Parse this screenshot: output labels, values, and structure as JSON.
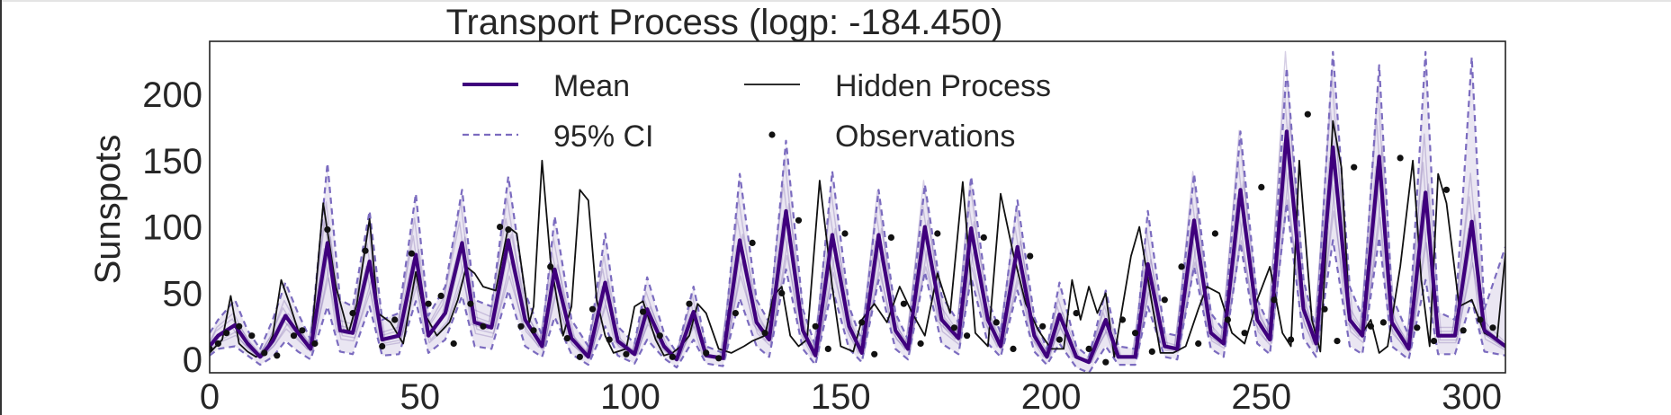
{
  "colors": {
    "mean": "#3f007d",
    "ci": "#7b6bbf",
    "samples": "#6a51a3",
    "hidden": "#111111",
    "observations": "#111111",
    "axes": "#222222"
  },
  "chart_data": {
    "type": "line",
    "title": "Transport Process (logp: -184.450)",
    "xlabel": "",
    "ylabel": "Sunspots",
    "xlim": [
      0,
      308
    ],
    "ylim": [
      -10,
      240
    ],
    "xticks": [
      0,
      50,
      100,
      150,
      200,
      250,
      300
    ],
    "yticks": [
      0,
      50,
      100,
      150,
      200
    ],
    "grid": false,
    "legend_placement": "top-center, two columns",
    "legend": [
      {
        "label": "Mean",
        "style": "thick-line"
      },
      {
        "label": "95% CI",
        "style": "dashed"
      },
      {
        "label": "Hidden Process",
        "style": "thin-line"
      },
      {
        "label": "Observations",
        "style": "dot"
      }
    ],
    "series": [
      {
        "name": "Mean",
        "x": [
          0,
          2,
          6,
          9,
          12,
          15,
          18,
          21,
          24,
          28,
          31,
          34,
          38,
          41,
          45,
          49,
          52,
          56,
          60,
          63,
          67,
          71,
          75,
          79,
          82,
          86,
          90,
          94,
          97,
          101,
          104,
          108,
          111,
          115,
          118,
          122,
          126,
          130,
          133,
          137,
          141,
          144,
          148,
          152,
          155,
          159,
          163,
          166,
          170,
          174,
          178,
          181,
          185,
          188,
          192,
          196,
          199,
          202,
          206,
          209,
          213,
          216,
          220,
          223,
          227,
          230,
          234,
          238,
          241,
          245,
          249,
          252,
          256,
          260,
          263,
          267,
          271,
          274,
          278,
          281,
          285,
          289,
          292,
          296,
          300,
          303,
          308
        ],
        "y": [
          10,
          18,
          26,
          12,
          2,
          14,
          33,
          20,
          8,
          88,
          22,
          20,
          74,
          15,
          18,
          79,
          18,
          35,
          88,
          28,
          24,
          90,
          30,
          10,
          68,
          16,
          2,
          58,
          14,
          4,
          38,
          10,
          0,
          36,
          3,
          1,
          90,
          28,
          15,
          112,
          22,
          3,
          94,
          25,
          5,
          94,
          22,
          8,
          100,
          30,
          16,
          99,
          30,
          10,
          85,
          18,
          2,
          34,
          2,
          -2,
          30,
          2,
          2,
          72,
          10,
          8,
          105,
          20,
          12,
          128,
          30,
          15,
          172,
          38,
          12,
          160,
          30,
          18,
          153,
          28,
          8,
          126,
          18,
          18,
          104,
          22,
          10
        ]
      },
      {
        "name": "95% CI",
        "x": [
          0,
          2,
          6,
          9,
          12,
          15,
          18,
          21,
          24,
          28,
          31,
          34,
          38,
          41,
          45,
          49,
          52,
          56,
          60,
          63,
          67,
          71,
          75,
          79,
          82,
          86,
          90,
          94,
          97,
          101,
          104,
          108,
          111,
          115,
          118,
          122,
          126,
          130,
          133,
          137,
          141,
          144,
          148,
          152,
          155,
          159,
          163,
          166,
          170,
          174,
          178,
          181,
          185,
          188,
          192,
          196,
          199,
          202,
          206,
          209,
          213,
          216,
          220,
          223,
          227,
          230,
          234,
          238,
          241,
          245,
          249,
          252,
          256,
          260,
          263,
          267,
          271,
          274,
          278,
          281,
          285,
          289,
          292,
          296,
          300,
          303,
          308
        ],
        "y": [
          20,
          30,
          45,
          22,
          8,
          30,
          58,
          35,
          15,
          148,
          45,
          40,
          112,
          30,
          35,
          125,
          33,
          55,
          128,
          45,
          40,
          138,
          50,
          18,
          108,
          30,
          10,
          95,
          25,
          12,
          62,
          20,
          5,
          55,
          10,
          5,
          140,
          45,
          28,
          165,
          38,
          10,
          142,
          40,
          14,
          128,
          35,
          15,
          132,
          48,
          28,
          138,
          45,
          20,
          120,
          32,
          8,
          58,
          10,
          2,
          52,
          10,
          8,
          112,
          20,
          18,
          140,
          35,
          22,
          172,
          45,
          25,
          220,
          60,
          22,
          232,
          55,
          32,
          222,
          48,
          18,
          232,
          36,
          30,
          228,
          38,
          85
        ]
      },
      {
        "name": "Hidden Process",
        "x": [
          0,
          3,
          5,
          7,
          9,
          11,
          13,
          15,
          17,
          19,
          21,
          24,
          27,
          30,
          33,
          35,
          38,
          40,
          43,
          46,
          49,
          51,
          54,
          57,
          59,
          61,
          63,
          65,
          68,
          71,
          73,
          76,
          77,
          79,
          81,
          84,
          86,
          88,
          90,
          92,
          94,
          96,
          99,
          101,
          103,
          106,
          108,
          110,
          112,
          114,
          116,
          118,
          121,
          124,
          127,
          129,
          132,
          134,
          136,
          138,
          140,
          142,
          145,
          148,
          150,
          153,
          155,
          158,
          161,
          164,
          167,
          170,
          173,
          176,
          179,
          182,
          185,
          188,
          191,
          194,
          197,
          200,
          203,
          205,
          207,
          209,
          211,
          213,
          215,
          217,
          219,
          221,
          224,
          226,
          229,
          232,
          235,
          237,
          240,
          243,
          246,
          249,
          252,
          255,
          257,
          259,
          262,
          264,
          267,
          269,
          271,
          274,
          276,
          278,
          280,
          283,
          286,
          288,
          290,
          292,
          294,
          297,
          300,
          303,
          306,
          308
        ],
        "y": [
          5,
          15,
          48,
          12,
          6,
          2,
          5,
          18,
          60,
          42,
          22,
          8,
          118,
          55,
          20,
          42,
          106,
          35,
          28,
          12,
          66,
          35,
          18,
          28,
          45,
          70,
          65,
          55,
          52,
          100,
          95,
          28,
          40,
          150,
          75,
          18,
          40,
          128,
          120,
          45,
          18,
          5,
          8,
          40,
          44,
          15,
          3,
          5,
          10,
          18,
          42,
          35,
          8,
          5,
          10,
          14,
          18,
          48,
          55,
          18,
          10,
          15,
          135,
          55,
          10,
          6,
          30,
          42,
          28,
          55,
          35,
          18,
          65,
          35,
          134,
          20,
          10,
          125,
          80,
          42,
          22,
          8,
          8,
          60,
          30,
          55,
          35,
          50,
          2,
          40,
          78,
          100,
          42,
          5,
          5,
          10,
          38,
          55,
          50,
          20,
          12,
          45,
          70,
          20,
          10,
          150,
          30,
          6,
          180,
          145,
          30,
          20,
          30,
          5,
          10,
          70,
          150,
          60,
          10,
          140,
          118,
          40,
          45,
          20,
          15,
          80
        ]
      },
      {
        "name": "Observations",
        "x": [
          0,
          2,
          4,
          7,
          10,
          13,
          16,
          20,
          22,
          25,
          28,
          34,
          37,
          41,
          44,
          48,
          52,
          55,
          58,
          62,
          65,
          69,
          71,
          74,
          77,
          81,
          85,
          88,
          91,
          95,
          99,
          103,
          107,
          110,
          114,
          118,
          121,
          125,
          129,
          132,
          136,
          140,
          144,
          147,
          151,
          155,
          158,
          162,
          165,
          169,
          173,
          177,
          180,
          184,
          187,
          191,
          195,
          198,
          202,
          206,
          209,
          213,
          217,
          220,
          224,
          227,
          231,
          235,
          239,
          242,
          246,
          250,
          253,
          257,
          261,
          265,
          268,
          272,
          276,
          279,
          283,
          287,
          291,
          294,
          298,
          302,
          305
        ],
        "y": [
          8,
          12,
          20,
          25,
          18,
          5,
          3,
          18,
          22,
          12,
          98,
          35,
          82,
          10,
          30,
          80,
          42,
          48,
          12,
          42,
          25,
          100,
          98,
          25,
          22,
          70,
          16,
          2,
          38,
          15,
          4,
          36,
          18,
          2,
          42,
          5,
          1,
          35,
          88,
          20,
          50,
          105,
          25,
          8,
          95,
          28,
          4,
          92,
          42,
          12,
          95,
          24,
          18,
          92,
          28,
          8,
          78,
          25,
          15,
          35,
          8,
          -2,
          30,
          20,
          6,
          45,
          70,
          12,
          95,
          30,
          20,
          130,
          45,
          15,
          185,
          38,
          14,
          145,
          25,
          28,
          152,
          24,
          14,
          128,
          22,
          30,
          24
        ]
      }
    ],
    "ci_lower": {
      "x": [
        0,
        2,
        6,
        9,
        12,
        15,
        18,
        21,
        24,
        28,
        31,
        34,
        38,
        41,
        45,
        49,
        52,
        56,
        60,
        63,
        67,
        71,
        75,
        79,
        82,
        86,
        90,
        94,
        97,
        101,
        104,
        108,
        111,
        115,
        118,
        122,
        126,
        130,
        133,
        137,
        141,
        144,
        148,
        152,
        155,
        159,
        163,
        166,
        170,
        174,
        178,
        181,
        185,
        188,
        192,
        196,
        199,
        202,
        206,
        209,
        213,
        216,
        220,
        223,
        227,
        230,
        234,
        238,
        241,
        245,
        249,
        252,
        256,
        260,
        263,
        267,
        271,
        274,
        278,
        281,
        285,
        289,
        292,
        296,
        300,
        303,
        308
      ],
      "y": [
        3,
        8,
        10,
        3,
        -4,
        2,
        14,
        6,
        0,
        40,
        6,
        4,
        40,
        3,
        4,
        44,
        5,
        15,
        48,
        10,
        8,
        52,
        10,
        2,
        32,
        4,
        -4,
        25,
        3,
        -3,
        15,
        1,
        -6,
        15,
        -3,
        -5,
        46,
        10,
        2,
        68,
        8,
        -4,
        54,
        8,
        -2,
        60,
        8,
        0,
        66,
        12,
        4,
        62,
        12,
        2,
        52,
        6,
        -4,
        12,
        -6,
        -10,
        10,
        -4,
        -4,
        40,
        2,
        0,
        70,
        8,
        2,
        88,
        12,
        4,
        118,
        16,
        2,
        90,
        10,
        4,
        92,
        10,
        0,
        60,
        4,
        4,
        45,
        6,
        3
      ]
    }
  }
}
